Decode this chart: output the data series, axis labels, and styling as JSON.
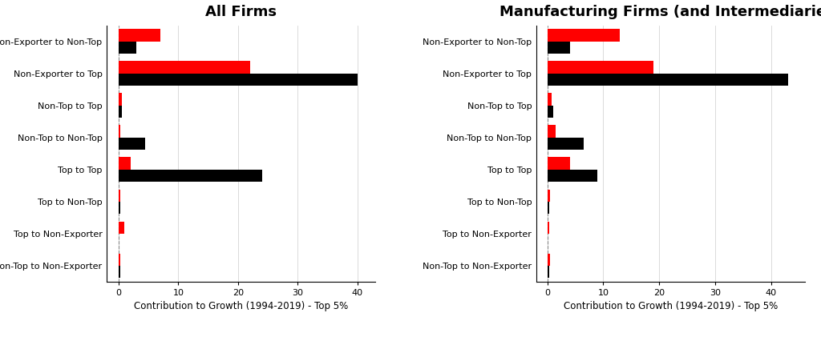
{
  "categories": [
    "Non-Exporter to Non-Top",
    "Non-Exporter to Top",
    "Non-Top to Top",
    "Non-Top to Non-Top",
    "Top to Top",
    "Top to Non-Top",
    "Top to Non-Exporter",
    "Non-Top to Non-Exporter"
  ],
  "left_title": "All Firms",
  "right_title": "Manufacturing Firms (and Intermediaries)",
  "xlabel": "Contribution to Growth (1994-2019) - Top 5%",
  "left_smes": [
    7.0,
    22.0,
    0.5,
    0.3,
    2.0,
    0.3,
    1.0,
    0.3
  ],
  "left_nonsmes": [
    3.0,
    40.0,
    0.5,
    4.5,
    24.0,
    0.3,
    0.0,
    0.3
  ],
  "right_smes": [
    13.0,
    19.0,
    0.8,
    1.5,
    4.0,
    0.5,
    0.3,
    0.5
  ],
  "right_nonsmes": [
    4.0,
    43.0,
    1.0,
    6.5,
    9.0,
    0.3,
    0.0,
    0.3
  ],
  "sme_color": "#FF0000",
  "nonsme_color": "#000000",
  "left_xlim": [
    -2,
    43
  ],
  "right_xlim": [
    -2,
    46
  ],
  "left_xticks": [
    0,
    10,
    20,
    30,
    40
  ],
  "right_xticks": [
    0,
    10,
    20,
    30,
    40
  ],
  "bar_height": 0.38,
  "title_fontsize": 13,
  "label_fontsize": 8,
  "tick_fontsize": 8,
  "xlabel_fontsize": 8.5
}
